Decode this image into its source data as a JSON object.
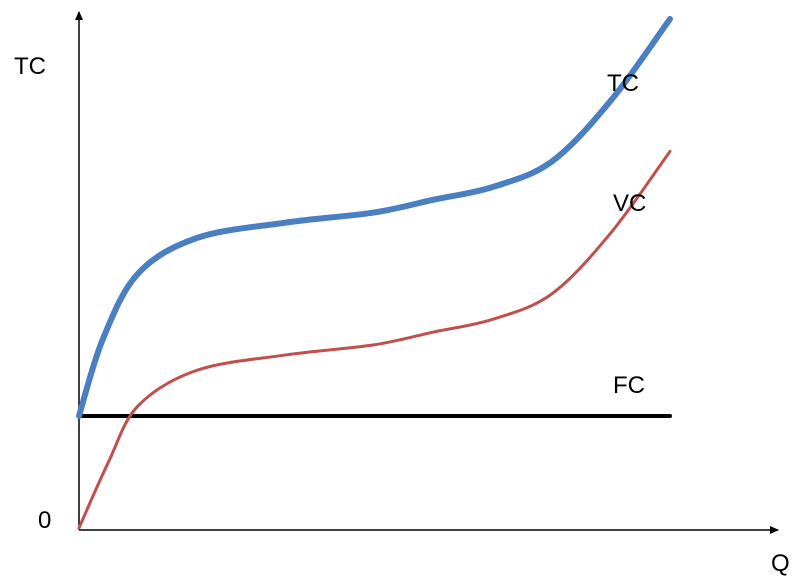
{
  "chart_data": {
    "type": "line",
    "title": "",
    "xlabel": "Q",
    "ylabel": "TC",
    "origin_label": "0",
    "xlim": [
      0,
      100
    ],
    "ylim": [
      0,
      100
    ],
    "grid": false,
    "legend": "none",
    "series": [
      {
        "name": "TC",
        "color": "#4a7fc1",
        "x": [
          0,
          4,
          10,
          20,
          35,
          50,
          60,
          70,
          80,
          90,
          100
        ],
        "y": [
          22,
          37,
          50,
          57,
          60,
          62,
          64.5,
          67,
          72,
          84,
          100
        ]
      },
      {
        "name": "VC",
        "color": "#c0504d",
        "x": [
          0,
          5,
          10,
          20,
          35,
          50,
          60,
          70,
          80,
          90,
          100
        ],
        "y": [
          0,
          13,
          24,
          31,
          34,
          36,
          38.5,
          41,
          46,
          58,
          74
        ]
      },
      {
        "name": "FC",
        "color": "#000000",
        "x": [
          0,
          100
        ],
        "y": [
          22,
          22
        ]
      }
    ]
  }
}
